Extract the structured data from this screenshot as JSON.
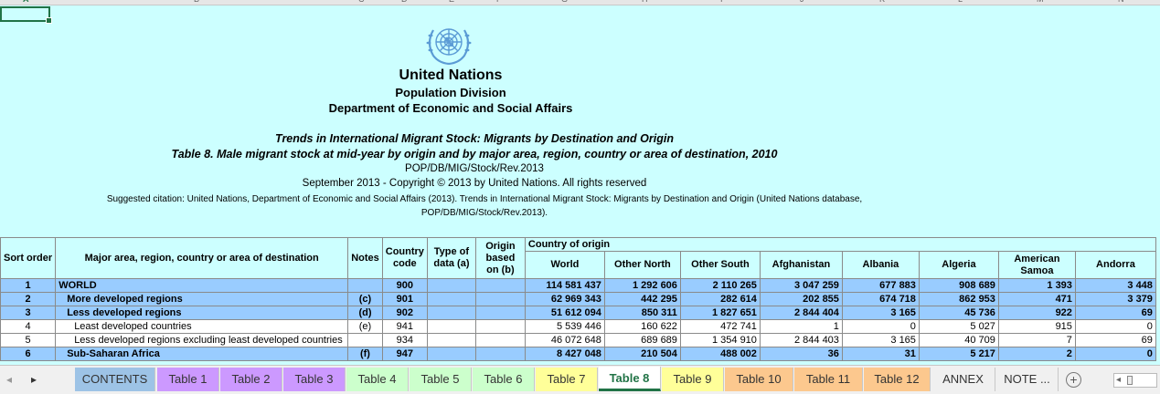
{
  "columns": [
    "A",
    "B",
    "C",
    "D",
    "E",
    "F",
    "G",
    "H",
    "I",
    "J",
    "K",
    "L",
    "M",
    "N"
  ],
  "title_block": {
    "org": "United Nations",
    "division": "Population Division",
    "department": "Department of Economic and Social Affairs",
    "series_title": "Trends in International Migrant Stock: Migrants by Destination and Origin",
    "table_title": "Table 8. Male migrant stock at mid-year by origin and by major area, region, country or area of destination, 2010",
    "doc_code": "POP/DB/MIG/Stock/Rev.2013",
    "copyright": "September 2013 - Copyright © 2013 by United Nations. All rights reserved",
    "citation_1": "Suggested citation: United Nations, Department of Economic and Social Affairs (2013). Trends in International Migrant Stock: Migrants by Destination and Origin (United Nations database,",
    "citation_2": "POP/DB/MIG/Stock/Rev.2013)."
  },
  "headers": {
    "sort_order": "Sort order",
    "area": "Major area, region, country or area of destination",
    "notes": "Notes",
    "country_code": "Country code",
    "type_of_data": "Type of data (a)",
    "origin_based": "Origin based on (b)",
    "country_of_origin": "Country of origin",
    "world": "World",
    "other_north": "Other North",
    "other_south": "Other South",
    "afghanistan": "Afghanistan",
    "albania": "Albania",
    "algeria": "Algeria",
    "american_samoa": "American Samoa",
    "andorra": "Andorra"
  },
  "rows": [
    {
      "sort": "1",
      "name": "WORLD",
      "notes": "",
      "code": "900",
      "type": "",
      "origin": "",
      "world": "114 581 437",
      "other_north": "1 292 606",
      "other_south": "2 110 265",
      "afghanistan": "3 047 259",
      "albania": "677 883",
      "algeria": "908 689",
      "american_samoa": "1 393",
      "andorra": "3 448"
    },
    {
      "sort": "2",
      "name": "More developed regions",
      "notes": "(c)",
      "code": "901",
      "type": "",
      "origin": "",
      "world": "62 969 343",
      "other_north": "442 295",
      "other_south": "282 614",
      "afghanistan": "202 855",
      "albania": "674 718",
      "algeria": "862 953",
      "american_samoa": "471",
      "andorra": "3 379"
    },
    {
      "sort": "3",
      "name": "Less developed regions",
      "notes": "(d)",
      "code": "902",
      "type": "",
      "origin": "",
      "world": "51 612 094",
      "other_north": "850 311",
      "other_south": "1 827 651",
      "afghanistan": "2 844 404",
      "albania": "3 165",
      "algeria": "45 736",
      "american_samoa": "922",
      "andorra": "69"
    },
    {
      "sort": "4",
      "name": "Least developed countries",
      "notes": "(e)",
      "code": "941",
      "type": "",
      "origin": "",
      "world": "5 539 446",
      "other_north": "160 622",
      "other_south": "472 741",
      "afghanistan": "1",
      "albania": "0",
      "algeria": "5 027",
      "american_samoa": "915",
      "andorra": "0"
    },
    {
      "sort": "5",
      "name": "Less developed regions excluding least developed countries",
      "notes": "",
      "code": "934",
      "type": "",
      "origin": "",
      "world": "46 072 648",
      "other_north": "689 689",
      "other_south": "1 354 910",
      "afghanistan": "2 844 403",
      "albania": "3 165",
      "algeria": "40 709",
      "american_samoa": "7",
      "andorra": "69"
    },
    {
      "sort": "6",
      "name": "Sub-Saharan Africa",
      "notes": "(f)",
      "code": "947",
      "type": "",
      "origin": "",
      "world": "8 427 048",
      "other_north": "210 504",
      "other_south": "488 002",
      "afghanistan": "36",
      "albania": "31",
      "algeria": "5 217",
      "american_samoa": "2",
      "andorra": "0"
    }
  ],
  "tabs": [
    "CONTENTS",
    "Table 1",
    "Table 2",
    "Table 3",
    "Table 4",
    "Table 5",
    "Table 6",
    "Table 7",
    "Table 8",
    "Table 9",
    "Table 10",
    "Table 11",
    "Table 12",
    "ANNEX",
    "NOTE ..."
  ],
  "active_tab": "Table 8",
  "tab_colors": {
    "CONTENTS": "#9dc3e6",
    "Table 1": "#cc99ff",
    "Table 2": "#cc99ff",
    "Table 3": "#cc99ff",
    "Table 4": "#ccffcc",
    "Table 5": "#ccffcc",
    "Table 6": "#ccffcc",
    "Table 7": "#ffff99",
    "Table 8": "#ffffff",
    "Table 9": "#ffff99",
    "Table 10": "#fcc88e",
    "Table 11": "#fcc88e",
    "Table 12": "#fcc88e",
    "ANNEX": "#f0f0f0",
    "NOTE ...": "#f0f0f0"
  },
  "icons": {
    "nav_prev": "◂",
    "nav_next": "▸",
    "add_sheet": "+",
    "scroll_left": "◂"
  }
}
